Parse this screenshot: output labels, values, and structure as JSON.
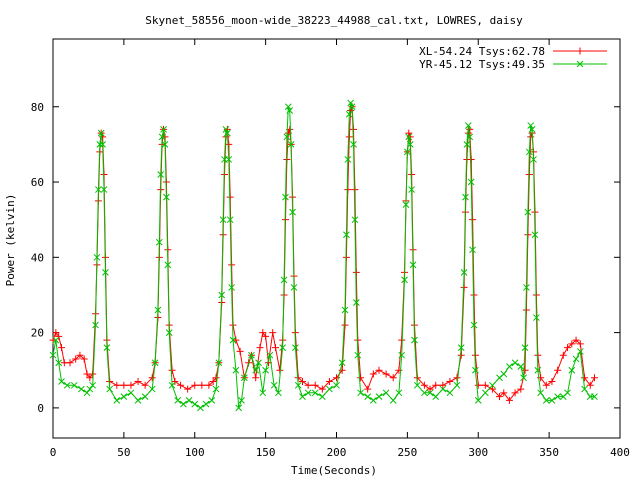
{
  "chart_data": {
    "type": "scatter",
    "title": "Skynet_58556_moon-wide_38223_44988_cal.txt, LOWRES, daisy",
    "xlabel": "Time(Seconds)",
    "ylabel": "Power (kelvin)",
    "xlim": [
      0,
      400
    ],
    "ylim": [
      -8,
      98
    ],
    "xticks": [
      0,
      50,
      100,
      150,
      200,
      250,
      300,
      350,
      400
    ],
    "yticks": [
      0,
      20,
      40,
      60,
      80
    ],
    "grid": false,
    "legend_position": "top-right",
    "series": [
      {
        "name": "XL-54.24 Tsys:62.78",
        "color": "#ff0000",
        "marker": "plus",
        "points": [
          [
            0,
            18
          ],
          [
            2,
            20
          ],
          [
            4,
            19
          ],
          [
            6,
            16
          ],
          [
            8,
            12
          ],
          [
            12,
            12
          ],
          [
            16,
            13
          ],
          [
            19,
            14
          ],
          [
            22,
            13
          ],
          [
            24,
            9
          ],
          [
            26,
            8
          ],
          [
            28,
            9
          ],
          [
            30,
            25
          ],
          [
            31,
            38
          ],
          [
            32,
            55
          ],
          [
            33,
            68
          ],
          [
            34,
            73
          ],
          [
            35,
            72
          ],
          [
            36,
            62
          ],
          [
            37,
            40
          ],
          [
            38,
            18
          ],
          [
            40,
            7
          ],
          [
            45,
            6
          ],
          [
            50,
            6
          ],
          [
            55,
            6
          ],
          [
            60,
            7
          ],
          [
            65,
            6
          ],
          [
            70,
            8
          ],
          [
            72,
            12
          ],
          [
            74,
            24
          ],
          [
            75,
            40
          ],
          [
            76,
            58
          ],
          [
            77,
            70
          ],
          [
            78,
            74
          ],
          [
            79,
            72
          ],
          [
            80,
            60
          ],
          [
            81,
            42
          ],
          [
            82,
            22
          ],
          [
            84,
            10
          ],
          [
            86,
            7
          ],
          [
            90,
            6
          ],
          [
            95,
            5
          ],
          [
            100,
            6
          ],
          [
            105,
            6
          ],
          [
            110,
            6
          ],
          [
            113,
            7
          ],
          [
            115,
            8
          ],
          [
            117,
            12
          ],
          [
            119,
            28
          ],
          [
            120,
            46
          ],
          [
            121,
            62
          ],
          [
            122,
            72
          ],
          [
            123,
            74
          ],
          [
            124,
            70
          ],
          [
            125,
            56
          ],
          [
            126,
            38
          ],
          [
            127,
            22
          ],
          [
            129,
            18
          ],
          [
            132,
            15
          ],
          [
            135,
            8
          ],
          [
            138,
            12
          ],
          [
            140,
            14
          ],
          [
            143,
            8
          ],
          [
            146,
            16
          ],
          [
            148,
            20
          ],
          [
            150,
            19
          ],
          [
            152,
            12
          ],
          [
            155,
            20
          ],
          [
            157,
            16
          ],
          [
            160,
            10
          ],
          [
            162,
            18
          ],
          [
            163,
            30
          ],
          [
            164,
            50
          ],
          [
            165,
            66
          ],
          [
            166,
            73
          ],
          [
            167,
            74
          ],
          [
            168,
            70
          ],
          [
            169,
            56
          ],
          [
            170,
            35
          ],
          [
            171,
            20
          ],
          [
            173,
            8
          ],
          [
            176,
            7
          ],
          [
            180,
            6
          ],
          [
            185,
            6
          ],
          [
            190,
            5
          ],
          [
            195,
            7
          ],
          [
            200,
            8
          ],
          [
            204,
            10
          ],
          [
            206,
            22
          ],
          [
            207,
            40
          ],
          [
            208,
            58
          ],
          [
            209,
            72
          ],
          [
            210,
            79
          ],
          [
            211,
            80
          ],
          [
            212,
            74
          ],
          [
            213,
            58
          ],
          [
            214,
            36
          ],
          [
            215,
            18
          ],
          [
            217,
            8
          ],
          [
            222,
            5
          ],
          [
            226,
            9
          ],
          [
            230,
            10
          ],
          [
            235,
            9
          ],
          [
            240,
            8
          ],
          [
            244,
            10
          ],
          [
            246,
            18
          ],
          [
            248,
            36
          ],
          [
            249,
            55
          ],
          [
            250,
            68
          ],
          [
            251,
            73
          ],
          [
            252,
            72
          ],
          [
            253,
            62
          ],
          [
            254,
            42
          ],
          [
            255,
            22
          ],
          [
            257,
            8
          ],
          [
            262,
            6
          ],
          [
            266,
            5
          ],
          [
            270,
            6
          ],
          [
            275,
            6
          ],
          [
            280,
            7
          ],
          [
            285,
            8
          ],
          [
            288,
            14
          ],
          [
            290,
            32
          ],
          [
            291,
            52
          ],
          [
            292,
            66
          ],
          [
            293,
            73
          ],
          [
            294,
            74
          ],
          [
            295,
            66
          ],
          [
            296,
            50
          ],
          [
            297,
            30
          ],
          [
            298,
            14
          ],
          [
            300,
            6
          ],
          [
            305,
            6
          ],
          [
            310,
            5
          ],
          [
            315,
            3
          ],
          [
            318,
            4
          ],
          [
            322,
            2
          ],
          [
            326,
            4
          ],
          [
            330,
            5
          ],
          [
            333,
            10
          ],
          [
            334,
            26
          ],
          [
            335,
            46
          ],
          [
            336,
            62
          ],
          [
            337,
            72
          ],
          [
            338,
            73
          ],
          [
            339,
            68
          ],
          [
            340,
            52
          ],
          [
            341,
            30
          ],
          [
            342,
            14
          ],
          [
            344,
            8
          ],
          [
            348,
            6
          ],
          [
            352,
            7
          ],
          [
            356,
            10
          ],
          [
            360,
            14
          ],
          [
            363,
            16
          ],
          [
            366,
            17
          ],
          [
            369,
            18
          ],
          [
            372,
            17
          ],
          [
            375,
            8
          ],
          [
            379,
            6
          ],
          [
            382,
            8
          ]
        ]
      },
      {
        "name": "YR-45.12 Tsys:49.35",
        "color": "#00c000",
        "marker": "cross",
        "points": [
          [
            0,
            14
          ],
          [
            2,
            18
          ],
          [
            4,
            12
          ],
          [
            6,
            7
          ],
          [
            10,
            6
          ],
          [
            15,
            6
          ],
          [
            20,
            5
          ],
          [
            24,
            4
          ],
          [
            26,
            5
          ],
          [
            28,
            6
          ],
          [
            30,
            22
          ],
          [
            31,
            40
          ],
          [
            32,
            58
          ],
          [
            33,
            70
          ],
          [
            34,
            73
          ],
          [
            35,
            70
          ],
          [
            36,
            58
          ],
          [
            37,
            36
          ],
          [
            38,
            16
          ],
          [
            40,
            5
          ],
          [
            45,
            2
          ],
          [
            50,
            3
          ],
          [
            55,
            4
          ],
          [
            60,
            2
          ],
          [
            65,
            3
          ],
          [
            70,
            5
          ],
          [
            72,
            12
          ],
          [
            74,
            26
          ],
          [
            75,
            44
          ],
          [
            76,
            62
          ],
          [
            77,
            72
          ],
          [
            78,
            74
          ],
          [
            79,
            70
          ],
          [
            80,
            56
          ],
          [
            81,
            38
          ],
          [
            82,
            20
          ],
          [
            84,
            6
          ],
          [
            88,
            2
          ],
          [
            92,
            1
          ],
          [
            96,
            2
          ],
          [
            100,
            1
          ],
          [
            104,
            0
          ],
          [
            108,
            1
          ],
          [
            112,
            2
          ],
          [
            115,
            5
          ],
          [
            117,
            12
          ],
          [
            119,
            30
          ],
          [
            120,
            50
          ],
          [
            121,
            66
          ],
          [
            122,
            74
          ],
          [
            123,
            73
          ],
          [
            124,
            66
          ],
          [
            125,
            50
          ],
          [
            126,
            32
          ],
          [
            127,
            18
          ],
          [
            129,
            10
          ],
          [
            131,
            0
          ],
          [
            133,
            2
          ],
          [
            135,
            8
          ],
          [
            140,
            14
          ],
          [
            143,
            10
          ],
          [
            145,
            12
          ],
          [
            148,
            4
          ],
          [
            150,
            10
          ],
          [
            153,
            14
          ],
          [
            156,
            6
          ],
          [
            159,
            4
          ],
          [
            162,
            16
          ],
          [
            163,
            34
          ],
          [
            164,
            56
          ],
          [
            165,
            72
          ],
          [
            166,
            80
          ],
          [
            167,
            79
          ],
          [
            168,
            70
          ],
          [
            169,
            52
          ],
          [
            170,
            32
          ],
          [
            171,
            16
          ],
          [
            173,
            6
          ],
          [
            176,
            3
          ],
          [
            180,
            4
          ],
          [
            185,
            4
          ],
          [
            190,
            3
          ],
          [
            195,
            5
          ],
          [
            200,
            6
          ],
          [
            204,
            12
          ],
          [
            206,
            26
          ],
          [
            207,
            46
          ],
          [
            208,
            66
          ],
          [
            209,
            78
          ],
          [
            210,
            81
          ],
          [
            211,
            80
          ],
          [
            212,
            70
          ],
          [
            213,
            50
          ],
          [
            214,
            28
          ],
          [
            215,
            14
          ],
          [
            217,
            4
          ],
          [
            222,
            3
          ],
          [
            226,
            2
          ],
          [
            230,
            3
          ],
          [
            235,
            4
          ],
          [
            240,
            2
          ],
          [
            244,
            4
          ],
          [
            246,
            14
          ],
          [
            248,
            34
          ],
          [
            249,
            54
          ],
          [
            250,
            68
          ],
          [
            251,
            72
          ],
          [
            252,
            70
          ],
          [
            253,
            58
          ],
          [
            254,
            38
          ],
          [
            255,
            18
          ],
          [
            257,
            6
          ],
          [
            262,
            4
          ],
          [
            266,
            4
          ],
          [
            270,
            3
          ],
          [
            275,
            5
          ],
          [
            280,
            4
          ],
          [
            285,
            6
          ],
          [
            288,
            16
          ],
          [
            290,
            36
          ],
          [
            291,
            56
          ],
          [
            292,
            70
          ],
          [
            293,
            75
          ],
          [
            294,
            72
          ],
          [
            295,
            60
          ],
          [
            296,
            42
          ],
          [
            297,
            22
          ],
          [
            298,
            10
          ],
          [
            300,
            2
          ],
          [
            305,
            4
          ],
          [
            310,
            6
          ],
          [
            315,
            8
          ],
          [
            318,
            9
          ],
          [
            322,
            11
          ],
          [
            326,
            12
          ],
          [
            330,
            11
          ],
          [
            332,
            8
          ],
          [
            333,
            16
          ],
          [
            334,
            32
          ],
          [
            335,
            52
          ],
          [
            336,
            68
          ],
          [
            337,
            75
          ],
          [
            338,
            74
          ],
          [
            339,
            66
          ],
          [
            340,
            46
          ],
          [
            341,
            24
          ],
          [
            342,
            10
          ],
          [
            344,
            4
          ],
          [
            348,
            2
          ],
          [
            352,
            2
          ],
          [
            356,
            3
          ],
          [
            360,
            3
          ],
          [
            363,
            4
          ],
          [
            366,
            10
          ],
          [
            369,
            13
          ],
          [
            372,
            15
          ],
          [
            375,
            5
          ],
          [
            379,
            3
          ],
          [
            382,
            3
          ]
        ]
      }
    ]
  }
}
